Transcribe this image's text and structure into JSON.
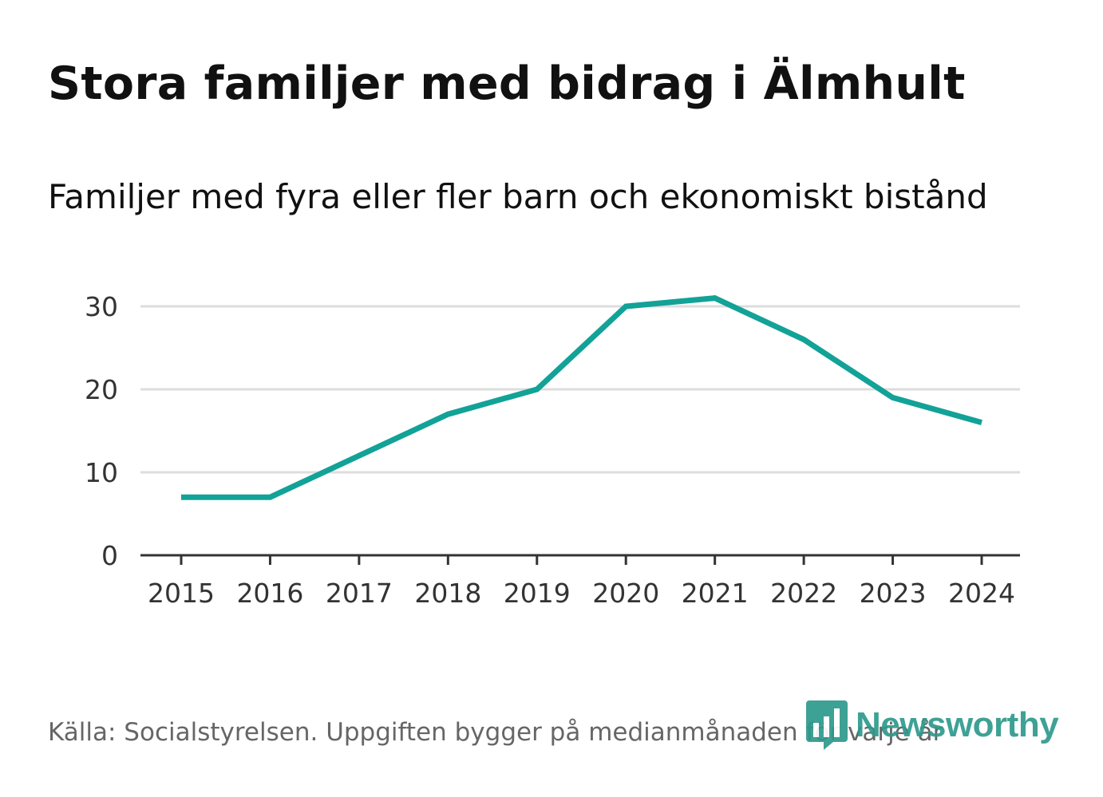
{
  "header": {
    "title": "Stora familjer med bidrag i Älmhult",
    "subtitle": "Familjer med fyra eller fler barn och ekonomiskt bistånd"
  },
  "footer": {
    "source": "Källa: Socialstyrelsen. Uppgiften bygger på medianmånaden för varje år",
    "brand": "Newsworthy"
  },
  "colors": {
    "line": "#12a297",
    "grid": "#dddddd",
    "axis": "#333333",
    "brand": "#2e9a8d"
  },
  "icons": {
    "brand_logo": "bar-chart-speech-bubble-icon"
  },
  "chart_data": {
    "type": "line",
    "title": "Stora familjer med bidrag i Älmhult",
    "subtitle": "Familjer med fyra eller fler barn och ekonomiskt bistånd",
    "xlabel": "",
    "ylabel": "",
    "x": [
      "2015",
      "2016",
      "2017",
      "2018",
      "2019",
      "2020",
      "2021",
      "2022",
      "2023",
      "2024"
    ],
    "series": [
      {
        "name": "Familjer med fyra eller fler barn och ekonomiskt bistånd",
        "values": [
          7,
          7,
          12,
          17,
          20,
          30,
          31,
          26,
          19,
          16
        ]
      }
    ],
    "yticks": [
      "0",
      "10",
      "20",
      "30"
    ],
    "ylim": [
      0,
      30
    ],
    "grid": true,
    "legend": "none"
  }
}
